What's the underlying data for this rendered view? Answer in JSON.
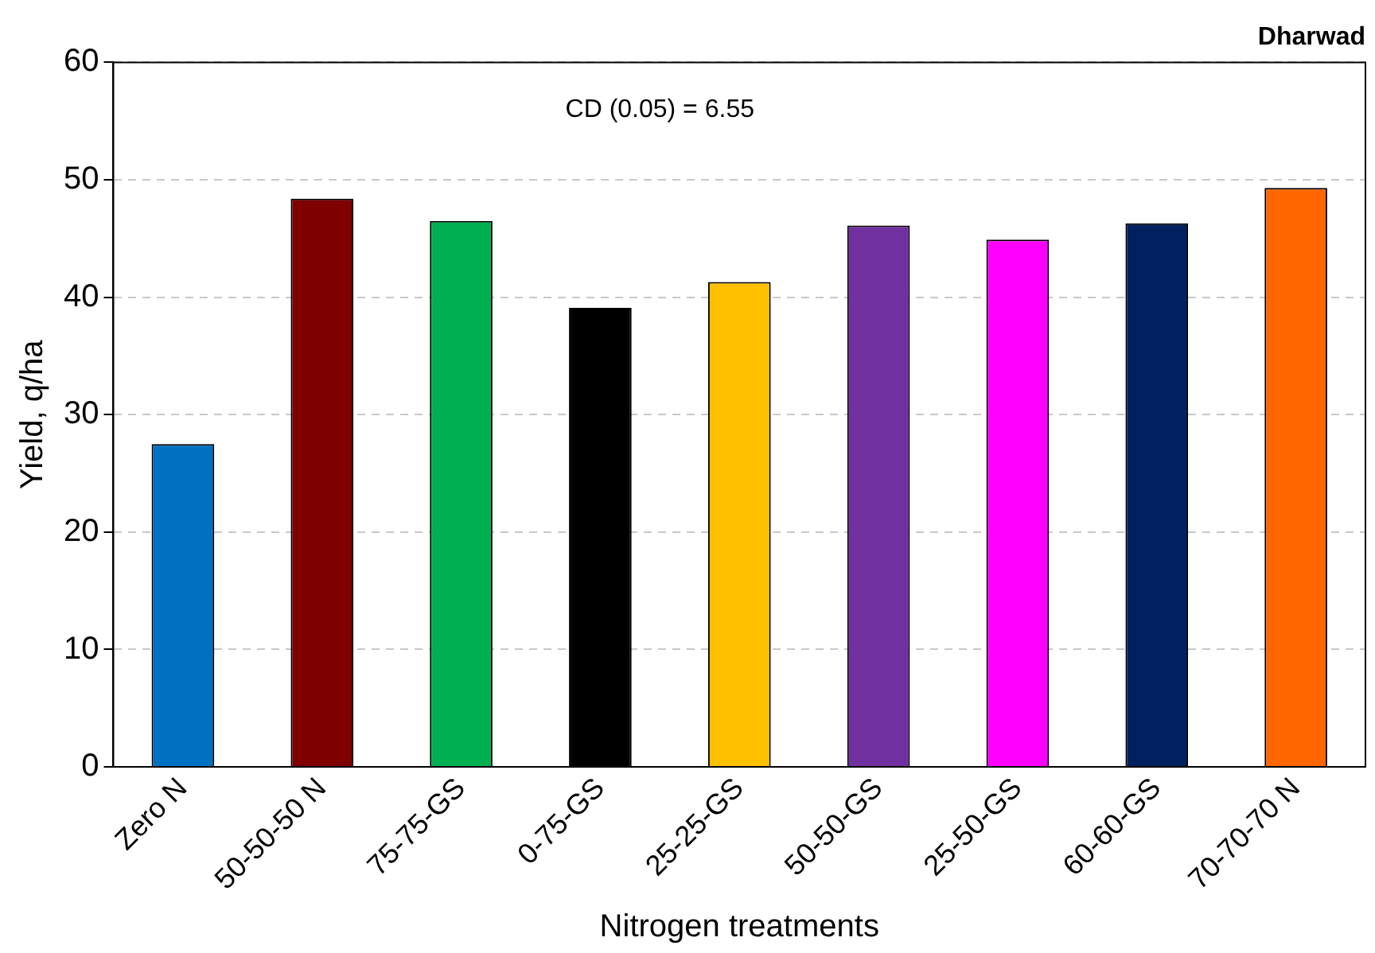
{
  "chart_data": {
    "type": "bar",
    "title": "Dharwad",
    "xlabel": "Nitrogen treatments",
    "ylabel": "Yield, q/ha",
    "categories": [
      "Zero N",
      "50-50-50 N",
      "75-75-GS",
      "0-75-GS",
      "25-25-GS",
      "50-50-GS",
      "25-50-GS",
      "60-60-GS",
      "70-70-70 N"
    ],
    "values": [
      27.5,
      48.4,
      46.5,
      39.1,
      41.3,
      46.1,
      44.9,
      46.3,
      49.3
    ],
    "colors": [
      "#0070c0",
      "#7f0000",
      "#00b050",
      "#000000",
      "#ffc000",
      "#7030a0",
      "#ff00ff",
      "#002060",
      "#ff6600"
    ],
    "ylim": [
      0,
      60
    ],
    "yticks": [
      0,
      10,
      20,
      30,
      40,
      50,
      60
    ],
    "grid": "y",
    "annotations": [
      "CD (0.05) = 6.55"
    ]
  }
}
